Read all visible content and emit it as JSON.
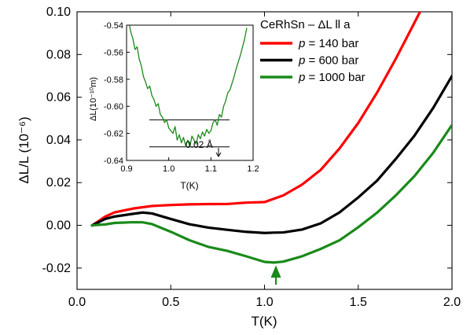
{
  "chart_data": [
    {
      "type": "line",
      "title": "",
      "xlabel": "T(K)",
      "ylabel": "ΔL/L (10⁻⁶)",
      "xlim": [
        0.0,
        2.0
      ],
      "ylim": [
        -0.03,
        0.1
      ],
      "xticks": [
        "0.0",
        "0.5",
        "1.0",
        "1.5",
        "2.0"
      ],
      "yticks": [
        "-0.02",
        "0.00",
        "0.02",
        "0.04",
        "0.06",
        "0.08",
        "0.10"
      ],
      "legend_title": "CeRhSn – ΔL ll a",
      "legend_position": "top-right",
      "grid": false,
      "series": [
        {
          "name": "p =  140 bar",
          "label_parts": [
            "p",
            " =  140 bar"
          ],
          "color": "#ff0000",
          "x": [
            0.08,
            0.15,
            0.2,
            0.3,
            0.4,
            0.5,
            0.6,
            0.7,
            0.8,
            0.9,
            1.0,
            1.1,
            1.2,
            1.3,
            1.4,
            1.5,
            1.6,
            1.7,
            1.8,
            1.83
          ],
          "y": [
            0.0,
            0.004,
            0.006,
            0.008,
            0.009,
            0.0095,
            0.0098,
            0.01,
            0.01,
            0.0105,
            0.011,
            0.014,
            0.019,
            0.026,
            0.036,
            0.048,
            0.062,
            0.078,
            0.095,
            0.1
          ]
        },
        {
          "name": "p =  600 bar",
          "label_parts": [
            "p",
            " =  600 bar"
          ],
          "color": "#000000",
          "x": [
            0.08,
            0.15,
            0.2,
            0.3,
            0.35,
            0.4,
            0.5,
            0.6,
            0.7,
            0.8,
            0.9,
            1.0,
            1.05,
            1.1,
            1.2,
            1.3,
            1.4,
            1.5,
            1.6,
            1.7,
            1.8,
            1.9,
            2.0
          ],
          "y": [
            0.0,
            0.003,
            0.004,
            0.0055,
            0.006,
            0.0055,
            0.003,
            0.0005,
            -0.001,
            -0.0022,
            -0.003,
            -0.0035,
            -0.0035,
            -0.0033,
            -0.002,
            0.001,
            0.006,
            0.013,
            0.021,
            0.031,
            0.042,
            0.055,
            0.07
          ]
        },
        {
          "name": "p = 1000 bar",
          "label_parts": [
            "p",
            " = 1000 bar"
          ],
          "color": "#1a8a1a",
          "x": [
            0.08,
            0.15,
            0.2,
            0.3,
            0.35,
            0.4,
            0.5,
            0.6,
            0.7,
            0.8,
            0.9,
            1.0,
            1.05,
            1.1,
            1.2,
            1.3,
            1.4,
            1.5,
            1.6,
            1.7,
            1.8,
            1.9,
            2.0
          ],
          "y": [
            0.0,
            0.0005,
            0.001,
            0.0015,
            0.0015,
            0.0005,
            -0.003,
            -0.007,
            -0.01,
            -0.012,
            -0.0145,
            -0.017,
            -0.0175,
            -0.017,
            -0.0145,
            -0.011,
            -0.007,
            -0.001,
            0.006,
            0.014,
            0.023,
            0.034,
            0.047
          ]
        }
      ],
      "annotations": [
        {
          "type": "arrow",
          "x": 1.05,
          "y": -0.02,
          "color": "#1a8a1a"
        }
      ]
    },
    {
      "type": "line",
      "title": "",
      "xlabel": "T(K)",
      "ylabel": "ΔL(10⁻¹⁰m)",
      "xlim": [
        0.9,
        1.2
      ],
      "ylim": [
        -0.64,
        -0.54
      ],
      "xticks": [
        "0.9",
        "1.0",
        "1.1",
        "1.2"
      ],
      "yticks": [
        "-0.64",
        "-0.62",
        "-0.60",
        "-0.58",
        "-0.56",
        "-0.54"
      ],
      "grid": false,
      "series": [
        {
          "name": "",
          "color": "#1a8a1a",
          "x": [
            0.907,
            0.91,
            0.915,
            0.92,
            0.925,
            0.93,
            0.935,
            0.94,
            0.945,
            0.95,
            0.955,
            0.96,
            0.965,
            0.97,
            0.975,
            0.98,
            0.985,
            0.99,
            0.995,
            1.0,
            1.005,
            1.01,
            1.015,
            1.02,
            1.025,
            1.03,
            1.035,
            1.04,
            1.045,
            1.05,
            1.055,
            1.06,
            1.065,
            1.07,
            1.075,
            1.08,
            1.085,
            1.09,
            1.095,
            1.1,
            1.105,
            1.11,
            1.115,
            1.12,
            1.125,
            1.13,
            1.135,
            1.14,
            1.145,
            1.15,
            1.155,
            1.16,
            1.165,
            1.17,
            1.175,
            1.18,
            1.185
          ],
          "y": [
            -0.54,
            -0.545,
            -0.55,
            -0.558,
            -0.556,
            -0.565,
            -0.57,
            -0.578,
            -0.582,
            -0.587,
            -0.585,
            -0.592,
            -0.595,
            -0.6,
            -0.598,
            -0.606,
            -0.608,
            -0.612,
            -0.61,
            -0.616,
            -0.618,
            -0.62,
            -0.615,
            -0.625,
            -0.621,
            -0.627,
            -0.623,
            -0.629,
            -0.625,
            -0.63,
            -0.622,
            -0.625,
            -0.628,
            -0.621,
            -0.624,
            -0.619,
            -0.622,
            -0.617,
            -0.62,
            -0.618,
            -0.612,
            -0.61,
            -0.614,
            -0.606,
            -0.608,
            -0.6,
            -0.596,
            -0.59,
            -0.588,
            -0.583,
            -0.578,
            -0.572,
            -0.567,
            -0.562,
            -0.556,
            -0.55,
            -0.542
          ]
        }
      ],
      "hlines": [
        -0.61,
        -0.63
      ],
      "annotations": [
        {
          "type": "text",
          "text": "0.02 Å"
        }
      ]
    }
  ]
}
